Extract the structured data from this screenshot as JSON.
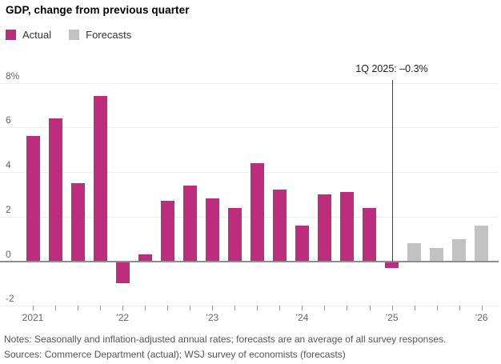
{
  "title": "GDP, change from previous quarter",
  "colors": {
    "actual": "#bd2d7d",
    "forecast": "#c2c2c2",
    "zero_axis": "#8e8e8e",
    "gridline": "#efefef",
    "annotation_line": "#444444"
  },
  "legend": [
    {
      "label": "Actual",
      "series": "actual",
      "color": "#bd2d7d"
    },
    {
      "label": "Forecasts",
      "series": "forecast",
      "color": "#c2c2c2"
    }
  ],
  "chart_data": {
    "type": "bar",
    "title": "GDP, change from previous quarter",
    "ylabel": "",
    "xlabel": "",
    "ylim": [
      -2,
      8
    ],
    "grid": true,
    "legend_position": "top-left",
    "y_axis": [
      {
        "label": "8%",
        "value": 8
      },
      {
        "label": "6",
        "value": 6
      },
      {
        "label": "4",
        "value": 4
      },
      {
        "label": "2",
        "value": 2
      },
      {
        "label": "0",
        "value": 0
      },
      {
        "label": "-2",
        "value": -2
      }
    ],
    "x_year_labels": [
      {
        "label": "2021",
        "quarter_index": 0
      },
      {
        "label": "’22",
        "quarter_index": 4
      },
      {
        "label": "’23",
        "quarter_index": 8
      },
      {
        "label": "’24",
        "quarter_index": 12
      },
      {
        "label": "’25",
        "quarter_index": 16
      },
      {
        "label": "’26",
        "quarter_index": 20
      }
    ],
    "bars": [
      {
        "quarter": "1Q 2021",
        "value": 5.6,
        "series": "actual"
      },
      {
        "quarter": "2Q 2021",
        "value": 6.4,
        "series": "actual"
      },
      {
        "quarter": "3Q 2021",
        "value": 3.5,
        "series": "actual"
      },
      {
        "quarter": "4Q 2021",
        "value": 7.4,
        "series": "actual"
      },
      {
        "quarter": "1Q 2022",
        "value": -1.0,
        "series": "actual"
      },
      {
        "quarter": "2Q 2022",
        "value": 0.3,
        "series": "actual"
      },
      {
        "quarter": "3Q 2022",
        "value": 2.7,
        "series": "actual"
      },
      {
        "quarter": "4Q 2022",
        "value": 3.4,
        "series": "actual"
      },
      {
        "quarter": "1Q 2023",
        "value": 2.8,
        "series": "actual"
      },
      {
        "quarter": "2Q 2023",
        "value": 2.4,
        "series": "actual"
      },
      {
        "quarter": "3Q 2023",
        "value": 4.4,
        "series": "actual"
      },
      {
        "quarter": "4Q 2023",
        "value": 3.2,
        "series": "actual"
      },
      {
        "quarter": "1Q 2024",
        "value": 1.6,
        "series": "actual"
      },
      {
        "quarter": "2Q 2024",
        "value": 3.0,
        "series": "actual"
      },
      {
        "quarter": "3Q 2024",
        "value": 3.1,
        "series": "actual"
      },
      {
        "quarter": "4Q 2024",
        "value": 2.4,
        "series": "actual"
      },
      {
        "quarter": "1Q 2025",
        "value": -0.3,
        "series": "actual"
      },
      {
        "quarter": "2Q 2025",
        "value": 0.8,
        "series": "forecast"
      },
      {
        "quarter": "3Q 2025",
        "value": 0.6,
        "series": "forecast"
      },
      {
        "quarter": "4Q 2025",
        "value": 1.0,
        "series": "forecast"
      },
      {
        "quarter": "1Q 2026",
        "value": 1.6,
        "series": "forecast"
      }
    ],
    "annotation": {
      "text": "1Q 2025: –0.3%",
      "quarter_index": 16
    }
  },
  "footer": {
    "notes": "Notes: Seasonally and inflation-adjusted annual rates; forecasts are an average of all survey responses.",
    "sources": "Sources: Commerce Department (actual); WSJ survey of economists (forecasts)"
  }
}
